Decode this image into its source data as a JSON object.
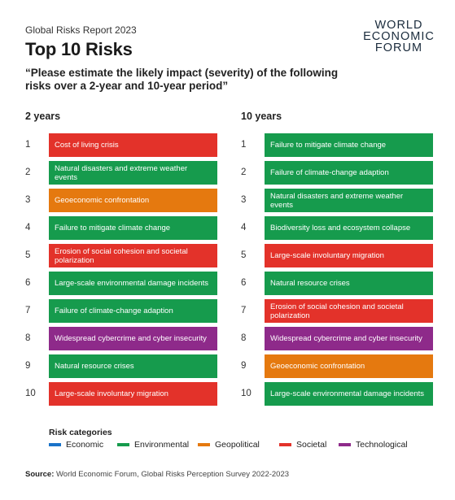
{
  "header": {
    "report": "Global Risks Report 2023",
    "title": "Top 10 Risks",
    "question": "“Please estimate the likely impact (severity) of the following risks over a 2-year and 10-year period”",
    "logo_lines": [
      "WORLD",
      "ECONOMIC",
      "FORUM"
    ]
  },
  "colors": {
    "Economic": "#1a73c9",
    "Environmental": "#169b4d",
    "Geopolitical": "#e5790f",
    "Societal": "#e3322a",
    "Technological": "#8e2a8a"
  },
  "chart_data": {
    "type": "table",
    "columns": [
      {
        "heading": "2 years",
        "rows": [
          {
            "rank": "1",
            "risk": "Cost of living crisis",
            "category": "Societal"
          },
          {
            "rank": "2",
            "risk": "Natural disasters and extreme weather events",
            "category": "Environmental"
          },
          {
            "rank": "3",
            "risk": "Geoeconomic confrontation",
            "category": "Geopolitical"
          },
          {
            "rank": "4",
            "risk": "Failure to mitigate climate change",
            "category": "Environmental"
          },
          {
            "rank": "5",
            "risk": "Erosion of social cohesion and societal polarization",
            "category": "Societal"
          },
          {
            "rank": "6",
            "risk": "Large-scale environmental damage incidents",
            "category": "Environmental"
          },
          {
            "rank": "7",
            "risk": "Failure of climate-change adaption",
            "category": "Environmental"
          },
          {
            "rank": "8",
            "risk": "Widespread cybercrime and cyber insecurity",
            "category": "Technological"
          },
          {
            "rank": "9",
            "risk": "Natural resource crises",
            "category": "Environmental"
          },
          {
            "rank": "10",
            "risk": "Large-scale involuntary migration",
            "category": "Societal"
          }
        ]
      },
      {
        "heading": "10 years",
        "rows": [
          {
            "rank": "1",
            "risk": "Failure to mitigate climate change",
            "category": "Environmental"
          },
          {
            "rank": "2",
            "risk": "Failure of climate-change adaption",
            "category": "Environmental"
          },
          {
            "rank": "3",
            "risk": "Natural disasters and extreme weather events",
            "category": "Environmental"
          },
          {
            "rank": "4",
            "risk": "Biodiversity loss and ecosystem collapse",
            "category": "Environmental"
          },
          {
            "rank": "5",
            "risk": "Large-scale involuntary migration",
            "category": "Societal"
          },
          {
            "rank": "6",
            "risk": "Natural resource crises",
            "category": "Environmental"
          },
          {
            "rank": "7",
            "risk": "Erosion of social cohesion and societal polarization",
            "category": "Societal"
          },
          {
            "rank": "8",
            "risk": "Widespread cybercrime and cyber insecurity",
            "category": "Technological"
          },
          {
            "rank": "9",
            "risk": "Geoeconomic confrontation",
            "category": "Geopolitical"
          },
          {
            "rank": "10",
            "risk": "Large-scale environmental damage incidents",
            "category": "Environmental"
          }
        ]
      }
    ],
    "legend": {
      "title": "Risk categories",
      "items": [
        "Economic",
        "Environmental",
        "Geopolitical",
        "Societal",
        "Technological"
      ]
    }
  },
  "source": {
    "label": "Source:",
    "text": "World Economic Forum, Global Risks Perception Survey 2022-2023"
  }
}
